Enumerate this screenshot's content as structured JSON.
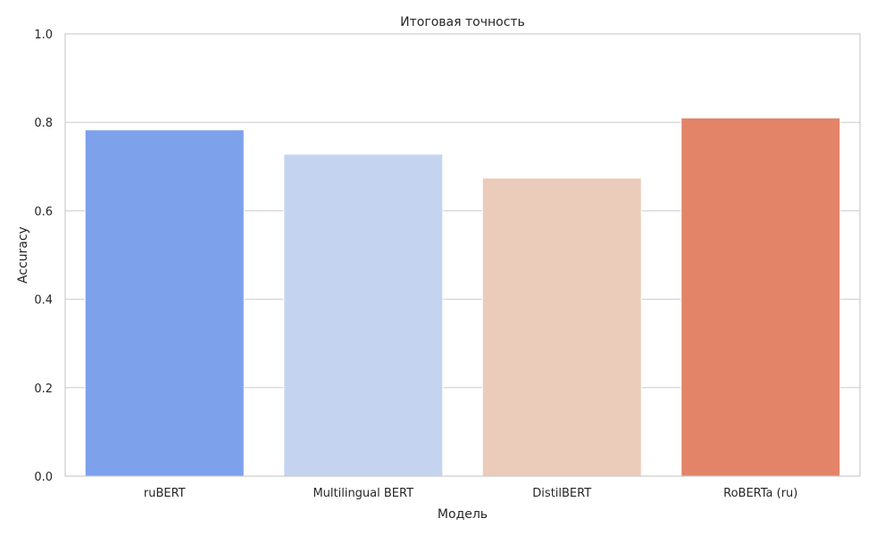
{
  "chart_data": {
    "type": "bar",
    "title": "Итоговая точность",
    "xlabel": "Модель",
    "ylabel": "Accuracy",
    "categories": [
      "ruBERT",
      "Multilingual BERT",
      "DistilBERT",
      "RoBERTa (ru)"
    ],
    "values": [
      0.783,
      0.728,
      0.674,
      0.81
    ],
    "colors": [
      "#7da1ea",
      "#c4d4f0",
      "#ebcbba",
      "#e38368"
    ],
    "ylim": [
      0,
      1
    ],
    "yticks": [
      "0.0",
      "0.2",
      "0.4",
      "0.6",
      "0.8",
      "1.0"
    ],
    "grid": "horizontal",
    "legend": "none"
  }
}
